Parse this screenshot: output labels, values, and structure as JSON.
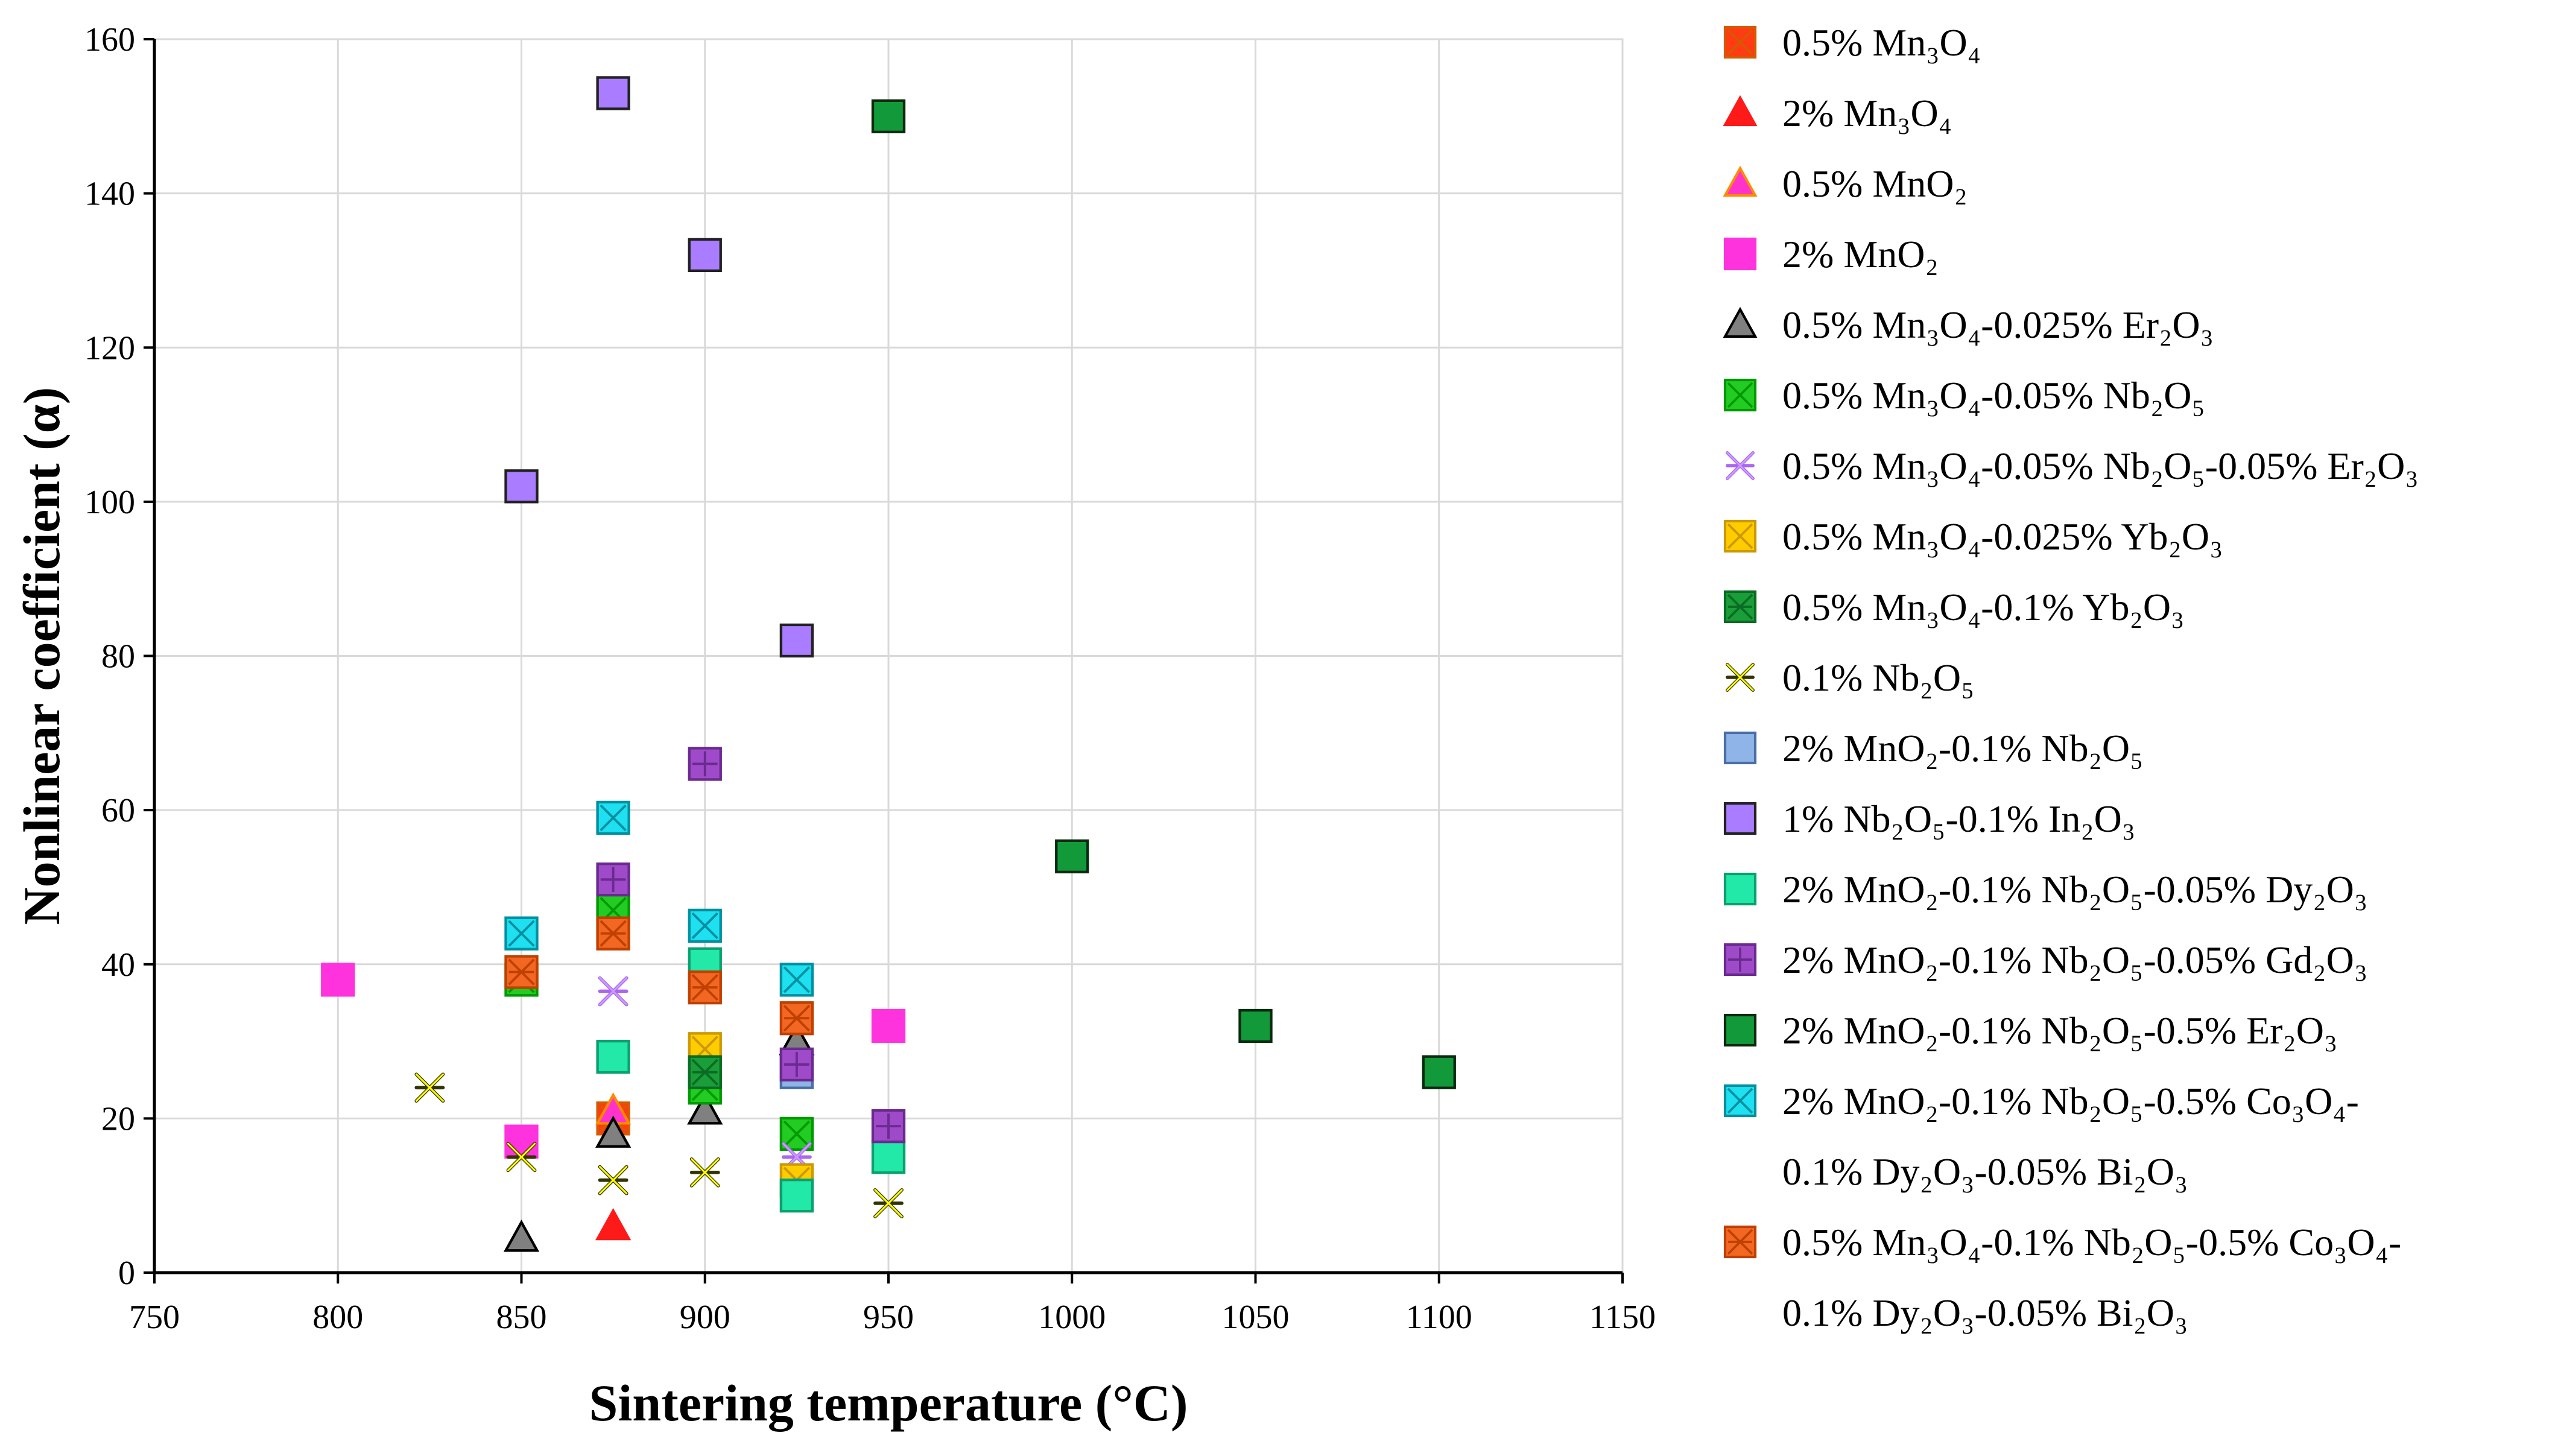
{
  "chart_data": {
    "type": "scatter",
    "xlabel": "Sintering temperature (°C)",
    "ylabel": "Nonlinear coefficient (α)",
    "xlim": [
      750,
      1150
    ],
    "ylim": [
      0,
      160
    ],
    "xticks": [
      "750",
      "800",
      "850",
      "900",
      "950",
      "1000",
      "1050",
      "1100",
      "1150"
    ],
    "yticks": [
      "0",
      "20",
      "40",
      "60",
      "80",
      "100",
      "120",
      "140",
      "160"
    ],
    "grid": true,
    "legend_position": "right",
    "series": [
      {
        "name": "0.5% Mn3O4",
        "legend_lines": [
          "0.5% Mn₃O₄"
        ],
        "marker": "square-x",
        "color": "#ff3b14",
        "stroke": "#d65a00",
        "points": [
          [
            875,
            20
          ]
        ]
      },
      {
        "name": "2% Mn3O4",
        "legend_lines": [
          "2% Mn₃O₄"
        ],
        "marker": "triangle",
        "color": "#ff1a1a",
        "stroke": "#ff1a1a",
        "points": [
          [
            875,
            6
          ]
        ]
      },
      {
        "name": "0.5% MnO2",
        "legend_lines": [
          "0.5% MnO₂"
        ],
        "marker": "triangle",
        "color": "#ff33cc",
        "stroke": "#ff8a00",
        "points": [
          [
            875,
            21
          ]
        ]
      },
      {
        "name": "2% MnO2",
        "legend_lines": [
          "2% MnO₂"
        ],
        "marker": "square",
        "color": "#ff33dd",
        "stroke": "#ff33dd",
        "points": [
          [
            800,
            38
          ],
          [
            850,
            17
          ],
          [
            950,
            32
          ]
        ]
      },
      {
        "name": "0.5% Mn3O4-0.025% Er2O3",
        "legend_lines": [
          "0.5% Mn₃O₄-0.025% Er₂O₃"
        ],
        "marker": "triangle",
        "color": "#808080",
        "stroke": "#000000",
        "points": [
          [
            850,
            4.5
          ],
          [
            875,
            18
          ],
          [
            900,
            21
          ],
          [
            925,
            30
          ]
        ]
      },
      {
        "name": "0.5% Mn3O4-0.05% Nb2O5",
        "legend_lines": [
          "0.5% Mn₃O₄-0.05% Nb₂O₅"
        ],
        "marker": "square-x",
        "color": "#22cc22",
        "stroke": "#009900",
        "points": [
          [
            850,
            38
          ],
          [
            875,
            47
          ],
          [
            900,
            24
          ],
          [
            925,
            18
          ]
        ]
      },
      {
        "name": "0.5% Mn3O4-0.05% Nb2O5-0.05% Er2O3",
        "legend_lines": [
          "0.5% Mn₃O₄-0.05% Nb₂O₅-0.05% Er₂O₃"
        ],
        "marker": "asterisk",
        "color": "#cc99ff",
        "stroke": "#aa66ee",
        "points": [
          [
            875,
            36.5
          ],
          [
            925,
            15
          ]
        ]
      },
      {
        "name": "0.5% Mn3O4-0.025% Yb2O3",
        "legend_lines": [
          "0.5% Mn₃O₄-0.025% Yb₂O₃"
        ],
        "marker": "square-x",
        "color": "#ffcc00",
        "stroke": "#cc9900",
        "points": [
          [
            900,
            29
          ],
          [
            925,
            12
          ]
        ]
      },
      {
        "name": "0.5% Mn3O4-0.1% Yb2O3",
        "legend_lines": [
          "0.5% Mn₃O₄-0.1% Yb₂O₃"
        ],
        "marker": "square-asterisk",
        "color": "#1a9e3a",
        "stroke": "#0a6b22",
        "points": [
          [
            900,
            26
          ]
        ]
      },
      {
        "name": "0.1% Nb2O5",
        "legend_lines": [
          "0.1% Nb₂O₅"
        ],
        "marker": "asterisk",
        "color": "#ffff00",
        "stroke": "#333300",
        "points": [
          [
            825,
            24
          ],
          [
            850,
            15
          ],
          [
            875,
            12
          ],
          [
            900,
            13
          ],
          [
            950,
            9
          ]
        ]
      },
      {
        "name": "2% MnO2-0.1% Nb2O5",
        "legend_lines": [
          "2% MnO₂-0.1% Nb₂O₅"
        ],
        "marker": "square",
        "color": "#8fb4e8",
        "stroke": "#4a6fa5",
        "points": [
          [
            925,
            26
          ]
        ]
      },
      {
        "name": "1% Nb2O5-0.1% In2O3",
        "legend_lines": [
          "1% Nb₂O₅-0.1% In₂O₃"
        ],
        "marker": "square",
        "color": "#aa7cff",
        "stroke": "#222222",
        "points": [
          [
            850,
            102
          ],
          [
            875,
            153
          ],
          [
            900,
            132
          ],
          [
            925,
            82
          ]
        ]
      },
      {
        "name": "2% MnO2-0.1% Nb2O5-0.05% Dy2O3",
        "legend_lines": [
          "2% MnO₂-0.1% Nb₂O₅-0.05% Dy₂O₃"
        ],
        "marker": "square",
        "color": "#22e8a8",
        "stroke": "#0aa070",
        "points": [
          [
            875,
            28
          ],
          [
            900,
            40
          ],
          [
            925,
            10
          ],
          [
            950,
            15
          ]
        ]
      },
      {
        "name": "2% MnO2-0.1% Nb2O5-0.05% Gd2O3",
        "legend_lines": [
          "2% MnO₂-0.1% Nb₂O₅-0.05% Gd₂O₃"
        ],
        "marker": "square-plus",
        "color": "#9f4bc9",
        "stroke": "#6a2a8f",
        "points": [
          [
            875,
            51
          ],
          [
            900,
            66
          ],
          [
            925,
            27
          ],
          [
            950,
            19
          ]
        ]
      },
      {
        "name": "2% MnO2-0.1% Nb2O5-0.5% Er2O3",
        "legend_lines": [
          "2% MnO₂-0.1% Nb₂O₅-0.5% Er₂O₃"
        ],
        "marker": "square",
        "color": "#129a3a",
        "stroke": "#0a2a10",
        "points": [
          [
            950,
            150
          ],
          [
            1000,
            54
          ],
          [
            1050,
            32
          ],
          [
            1100,
            26
          ]
        ]
      },
      {
        "name": "2% MnO2-0.1% Nb2O5-0.5% Co3O4-0.1% Dy2O3-0.05% Bi2O3",
        "legend_lines": [
          "2% MnO₂-0.1% Nb₂O₅-0.5% Co₃O₄-",
          "0.1% Dy₂O₃-0.05% Bi₂O₃"
        ],
        "marker": "square-x",
        "color": "#1ee0f0",
        "stroke": "#0090a0",
        "points": [
          [
            850,
            44
          ],
          [
            875,
            59
          ],
          [
            900,
            45
          ],
          [
            925,
            38
          ]
        ]
      },
      {
        "name": "0.5% Mn3O4-0.1% Nb2O5-0.5% Co3O4-0.1% Dy2O3-0.05% Bi2O3",
        "legend_lines": [
          "0.5% Mn₃O₄-0.1% Nb₂O₅-0.5% Co₃O₄-",
          "0.1% Dy₂O₃-0.05% Bi₂O₃"
        ],
        "marker": "square-asterisk",
        "color": "#f26722",
        "stroke": "#c04000",
        "points": [
          [
            850,
            39
          ],
          [
            875,
            44
          ],
          [
            900,
            37
          ],
          [
            925,
            33
          ]
        ]
      }
    ]
  }
}
